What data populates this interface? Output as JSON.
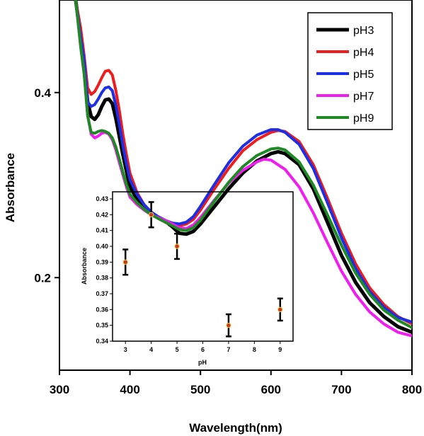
{
  "chart_data": [
    {
      "type": "line",
      "xlabel": "Wavelength(nm)",
      "ylabel": "Absorbance",
      "xlim": [
        300,
        800
      ],
      "ylim": [
        0.1,
        0.5
      ],
      "xticks": [
        300,
        400,
        500,
        600,
        700,
        800
      ],
      "yticks": [
        0.2,
        0.4
      ],
      "grid": false,
      "legend_position": "top-right",
      "series": [
        {
          "name": "pH3",
          "color": "#000000",
          "points": [
            [
              323,
              0.5
            ],
            [
              330,
              0.46
            ],
            [
              335,
              0.43
            ],
            [
              340,
              0.39
            ],
            [
              345,
              0.374
            ],
            [
              350,
              0.371
            ],
            [
              355,
              0.376
            ],
            [
              360,
              0.385
            ],
            [
              365,
              0.392
            ],
            [
              370,
              0.393
            ],
            [
              375,
              0.388
            ],
            [
              380,
              0.372
            ],
            [
              385,
              0.352
            ],
            [
              390,
              0.333
            ],
            [
              395,
              0.315
            ],
            [
              400,
              0.298
            ],
            [
              410,
              0.285
            ],
            [
              420,
              0.276
            ],
            [
              430,
              0.27
            ],
            [
              440,
              0.265
            ],
            [
              450,
              0.261
            ],
            [
              460,
              0.255
            ],
            [
              470,
              0.248
            ],
            [
              480,
              0.247
            ],
            [
              490,
              0.25
            ],
            [
              500,
              0.258
            ],
            [
              520,
              0.277
            ],
            [
              540,
              0.296
            ],
            [
              560,
              0.313
            ],
            [
              580,
              0.326
            ],
            [
              600,
              0.334
            ],
            [
              610,
              0.336
            ],
            [
              620,
              0.334
            ],
            [
              640,
              0.322
            ],
            [
              660,
              0.296
            ],
            [
              680,
              0.26
            ],
            [
              700,
              0.224
            ],
            [
              720,
              0.195
            ],
            [
              740,
              0.173
            ],
            [
              760,
              0.158
            ],
            [
              780,
              0.147
            ],
            [
              800,
              0.141
            ]
          ]
        },
        {
          "name": "pH4",
          "color": "#ee1c1c",
          "points": [
            [
              323,
              0.5
            ],
            [
              330,
              0.47
            ],
            [
              335,
              0.44
            ],
            [
              340,
              0.405
            ],
            [
              345,
              0.398
            ],
            [
              350,
              0.401
            ],
            [
              355,
              0.408
            ],
            [
              360,
              0.416
            ],
            [
              365,
              0.423
            ],
            [
              370,
              0.424
            ],
            [
              375,
              0.419
            ],
            [
              380,
              0.402
            ],
            [
              385,
              0.38
            ],
            [
              390,
              0.355
            ],
            [
              395,
              0.333
            ],
            [
              400,
              0.313
            ],
            [
              410,
              0.292
            ],
            [
              420,
              0.279
            ],
            [
              430,
              0.27
            ],
            [
              440,
              0.264
            ],
            [
              450,
              0.26
            ],
            [
              460,
              0.257
            ],
            [
              470,
              0.256
            ],
            [
              480,
              0.258
            ],
            [
              490,
              0.263
            ],
            [
              500,
              0.273
            ],
            [
              520,
              0.296
            ],
            [
              540,
              0.318
            ],
            [
              560,
              0.337
            ],
            [
              580,
              0.349
            ],
            [
              600,
              0.357
            ],
            [
              610,
              0.359
            ],
            [
              620,
              0.358
            ],
            [
              640,
              0.347
            ],
            [
              660,
              0.322
            ],
            [
              680,
              0.286
            ],
            [
              700,
              0.248
            ],
            [
              720,
              0.215
            ],
            [
              740,
              0.189
            ],
            [
              760,
              0.171
            ],
            [
              780,
              0.158
            ],
            [
              800,
              0.15
            ]
          ]
        },
        {
          "name": "pH5",
          "color": "#1c2ee6",
          "points": [
            [
              323,
              0.5
            ],
            [
              330,
              0.46
            ],
            [
              335,
              0.435
            ],
            [
              340,
              0.39
            ],
            [
              345,
              0.385
            ],
            [
              350,
              0.387
            ],
            [
              355,
              0.393
            ],
            [
              360,
              0.4
            ],
            [
              365,
              0.405
            ],
            [
              370,
              0.406
            ],
            [
              375,
              0.402
            ],
            [
              380,
              0.386
            ],
            [
              385,
              0.365
            ],
            [
              390,
              0.343
            ],
            [
              395,
              0.323
            ],
            [
              400,
              0.306
            ],
            [
              410,
              0.29
            ],
            [
              420,
              0.279
            ],
            [
              430,
              0.271
            ],
            [
              440,
              0.266
            ],
            [
              450,
              0.262
            ],
            [
              460,
              0.259
            ],
            [
              470,
              0.258
            ],
            [
              480,
              0.26
            ],
            [
              490,
              0.266
            ],
            [
              500,
              0.277
            ],
            [
              520,
              0.301
            ],
            [
              540,
              0.324
            ],
            [
              560,
              0.342
            ],
            [
              580,
              0.354
            ],
            [
              600,
              0.36
            ],
            [
              610,
              0.36
            ],
            [
              620,
              0.357
            ],
            [
              640,
              0.344
            ],
            [
              660,
              0.318
            ],
            [
              680,
              0.281
            ],
            [
              700,
              0.243
            ],
            [
              720,
              0.21
            ],
            [
              740,
              0.185
            ],
            [
              760,
              0.168
            ],
            [
              780,
              0.157
            ],
            [
              800,
              0.152
            ]
          ]
        },
        {
          "name": "pH7",
          "color": "#f01cf0",
          "points": [
            [
              323,
              0.5
            ],
            [
              330,
              0.45
            ],
            [
              335,
              0.42
            ],
            [
              340,
              0.375
            ],
            [
              345,
              0.355
            ],
            [
              350,
              0.351
            ],
            [
              355,
              0.353
            ],
            [
              360,
              0.356
            ],
            [
              365,
              0.357
            ],
            [
              370,
              0.355
            ],
            [
              375,
              0.349
            ],
            [
              380,
              0.338
            ],
            [
              385,
              0.324
            ],
            [
              390,
              0.311
            ],
            [
              395,
              0.298
            ],
            [
              400,
              0.287
            ],
            [
              410,
              0.279
            ],
            [
              420,
              0.273
            ],
            [
              430,
              0.268
            ],
            [
              440,
              0.265
            ],
            [
              450,
              0.262
            ],
            [
              460,
              0.258
            ],
            [
              470,
              0.254
            ],
            [
              480,
              0.253
            ],
            [
              490,
              0.257
            ],
            [
              500,
              0.265
            ],
            [
              520,
              0.284
            ],
            [
              540,
              0.302
            ],
            [
              560,
              0.316
            ],
            [
              580,
              0.325
            ],
            [
              590,
              0.328
            ],
            [
              600,
              0.327
            ],
            [
              620,
              0.317
            ],
            [
              640,
              0.298
            ],
            [
              660,
              0.27
            ],
            [
              680,
              0.238
            ],
            [
              700,
              0.207
            ],
            [
              720,
              0.182
            ],
            [
              740,
              0.163
            ],
            [
              760,
              0.15
            ],
            [
              780,
              0.141
            ],
            [
              800,
              0.137
            ]
          ]
        },
        {
          "name": "pH9",
          "color": "#1e8a24",
          "points": [
            [
              323,
              0.5
            ],
            [
              330,
              0.45
            ],
            [
              335,
              0.42
            ],
            [
              340,
              0.375
            ],
            [
              345,
              0.357
            ],
            [
              350,
              0.356
            ],
            [
              355,
              0.358
            ],
            [
              360,
              0.359
            ],
            [
              365,
              0.358
            ],
            [
              370,
              0.356
            ],
            [
              375,
              0.351
            ],
            [
              380,
              0.341
            ],
            [
              385,
              0.328
            ],
            [
              390,
              0.314
            ],
            [
              395,
              0.301
            ],
            [
              400,
              0.29
            ],
            [
              410,
              0.281
            ],
            [
              420,
              0.274
            ],
            [
              430,
              0.268
            ],
            [
              440,
              0.264
            ],
            [
              450,
              0.26
            ],
            [
              460,
              0.256
            ],
            [
              470,
              0.252
            ],
            [
              480,
              0.251
            ],
            [
              490,
              0.254
            ],
            [
              500,
              0.262
            ],
            [
              520,
              0.283
            ],
            [
              540,
              0.303
            ],
            [
              560,
              0.32
            ],
            [
              580,
              0.332
            ],
            [
              600,
              0.339
            ],
            [
              610,
              0.34
            ],
            [
              620,
              0.338
            ],
            [
              640,
              0.325
            ],
            [
              660,
              0.3
            ],
            [
              680,
              0.268
            ],
            [
              700,
              0.235
            ],
            [
              720,
              0.205
            ],
            [
              740,
              0.182
            ],
            [
              760,
              0.165
            ],
            [
              780,
              0.154
            ],
            [
              800,
              0.146
            ]
          ]
        }
      ]
    },
    {
      "type": "scatter",
      "xlabel": "pH",
      "ylabel": "Absorbance",
      "xlim": [
        2.5,
        9.5
      ],
      "ylim": [
        0.34,
        0.43
      ],
      "xticks": [
        3,
        4,
        5,
        6,
        7,
        8,
        9
      ],
      "yticks": [
        0.34,
        0.35,
        0.36,
        0.37,
        0.38,
        0.39,
        0.4,
        0.41,
        0.42,
        0.43
      ],
      "ytick_labels": [
        "0.34",
        "0.35",
        "0.36",
        "0.37",
        "0.38",
        "0.39",
        "0.40",
        "0.41",
        "0.42",
        "0.43"
      ],
      "grid": false,
      "point_color": "#c0392b",
      "points": [
        {
          "x": 3,
          "y": 0.39,
          "err": 0.008
        },
        {
          "x": 4,
          "y": 0.42,
          "err": 0.008
        },
        {
          "x": 5,
          "y": 0.4,
          "err": 0.008
        },
        {
          "x": 7,
          "y": 0.35,
          "err": 0.007
        },
        {
          "x": 9,
          "y": 0.36,
          "err": 0.007
        }
      ]
    }
  ]
}
